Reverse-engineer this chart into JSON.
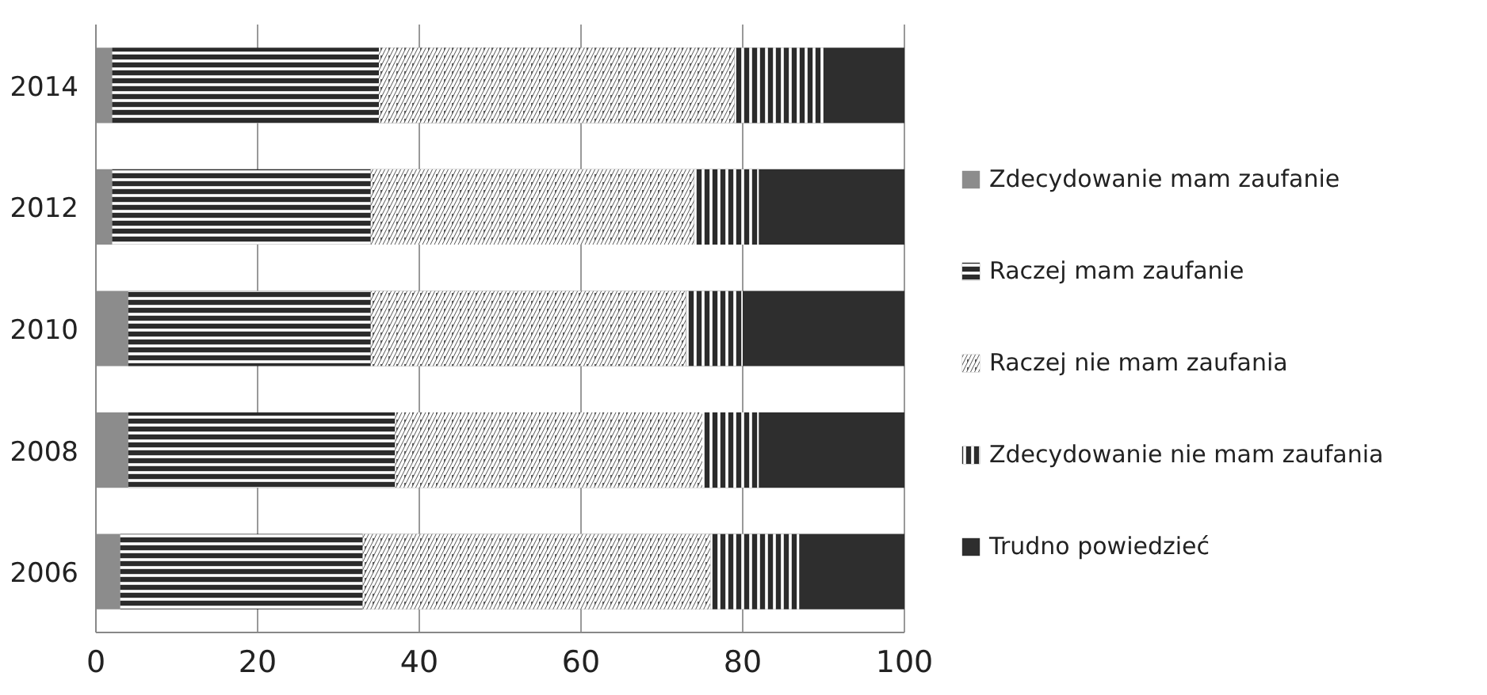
{
  "chart_data": {
    "type": "bar",
    "orientation": "horizontal",
    "stacked": true,
    "categories": [
      "2014",
      "2012",
      "2010",
      "2008",
      "2006"
    ],
    "series": [
      {
        "name": "Zdecydowanie mam zaufanie",
        "color": "#8c8c8c",
        "values": [
          2,
          2,
          4,
          4,
          3
        ]
      },
      {
        "name": "Raczej mam zaufanie",
        "color": "#2b2b2b",
        "values": [
          33,
          32,
          30,
          33,
          30
        ]
      },
      {
        "name": "Raczej nie mam zaufania",
        "color": "#555555",
        "values": [
          44,
          40,
          39,
          38,
          43
        ]
      },
      {
        "name": "Zdecydowanie nie mam zaufania",
        "color": "#2b2b2b",
        "values": [
          11,
          8,
          7,
          7,
          11
        ]
      },
      {
        "name": "Trudno powiedzieć",
        "color": "#2e2e2e",
        "values": [
          10,
          18,
          20,
          18,
          13
        ]
      }
    ],
    "xlim": [
      0,
      100
    ],
    "xticks": [
      0,
      20,
      40,
      60,
      80,
      100
    ],
    "grid": "x",
    "legend": "right"
  }
}
